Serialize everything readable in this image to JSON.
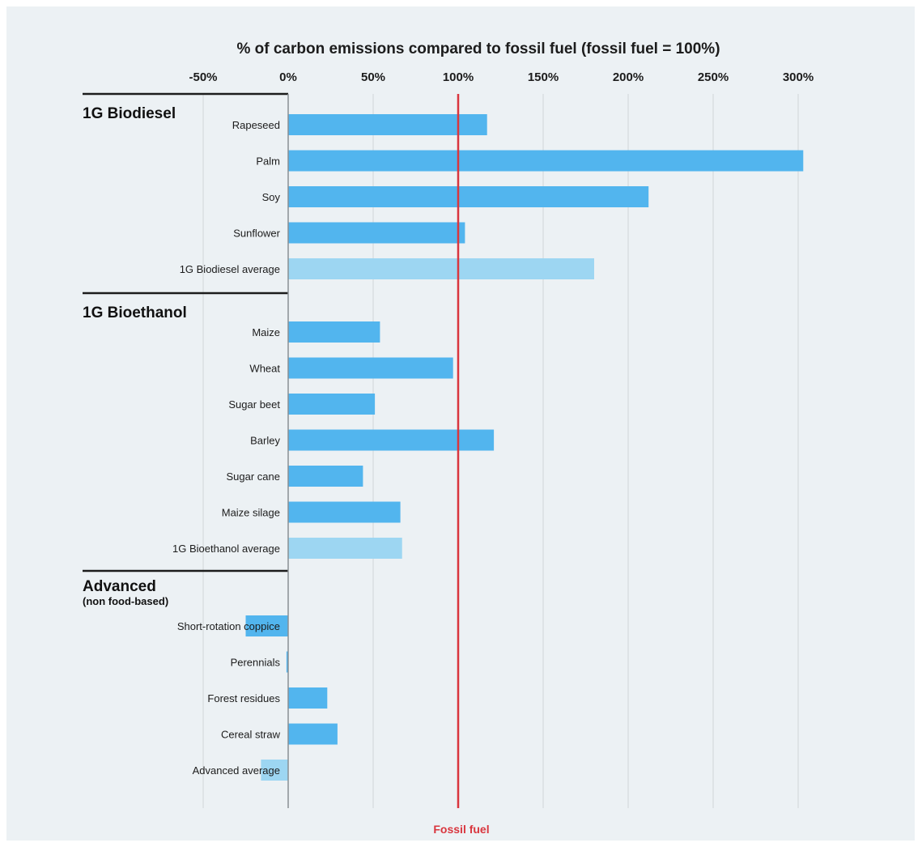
{
  "chart_data": {
    "type": "bar",
    "orientation": "horizontal",
    "title": "% of carbon emissions compared to fossil fuel (fossil fuel = 100%)",
    "xlim": [
      -50,
      310
    ],
    "ticks": [
      {
        "value": -50,
        "label": "-50%"
      },
      {
        "value": 0,
        "label": "0%"
      },
      {
        "value": 50,
        "label": "50%"
      },
      {
        "value": 100,
        "label": "100%"
      },
      {
        "value": 150,
        "label": "150%"
      },
      {
        "value": 200,
        "label": "200%"
      },
      {
        "value": 250,
        "label": "250%"
      },
      {
        "value": 300,
        "label": "300%"
      }
    ],
    "grid": true,
    "reference_line": {
      "value": 100,
      "label": "Fossil fuel",
      "color": "#d9363e"
    },
    "colors": {
      "bar": "#52b5ee",
      "average_bar": "#9dd6f2"
    },
    "groups": [
      {
        "title": "1G Biodiesel",
        "subtitle": "",
        "items": [
          {
            "label": "Rapeseed",
            "value": 117,
            "is_average": false
          },
          {
            "label": "Palm",
            "value": 303,
            "is_average": false
          },
          {
            "label": "Soy",
            "value": 212,
            "is_average": false
          },
          {
            "label": "Sunflower",
            "value": 104,
            "is_average": false
          },
          {
            "label": "1G Biodiesel average",
            "value": 180,
            "is_average": true
          }
        ]
      },
      {
        "title": "1G Bioethanol",
        "subtitle": "",
        "items": [
          {
            "label": "Maize",
            "value": 54,
            "is_average": false
          },
          {
            "label": "Wheat",
            "value": 97,
            "is_average": false
          },
          {
            "label": "Sugar beet",
            "value": 51,
            "is_average": false
          },
          {
            "label": "Barley",
            "value": 121,
            "is_average": false
          },
          {
            "label": "Sugar cane",
            "value": 44,
            "is_average": false
          },
          {
            "label": "Maize silage",
            "value": 66,
            "is_average": false
          },
          {
            "label": "1G Bioethanol average",
            "value": 67,
            "is_average": true
          }
        ]
      },
      {
        "title": "Advanced",
        "subtitle": "(non food-based)",
        "items": [
          {
            "label": "Short-rotation coppice",
            "value": -25,
            "is_average": false
          },
          {
            "label": "Perennials",
            "value": -1,
            "is_average": false
          },
          {
            "label": "Forest residues",
            "value": 23,
            "is_average": false
          },
          {
            "label": "Cereal straw",
            "value": 29,
            "is_average": false
          },
          {
            "label": "Advanced average",
            "value": -16,
            "is_average": true
          }
        ]
      }
    ]
  }
}
